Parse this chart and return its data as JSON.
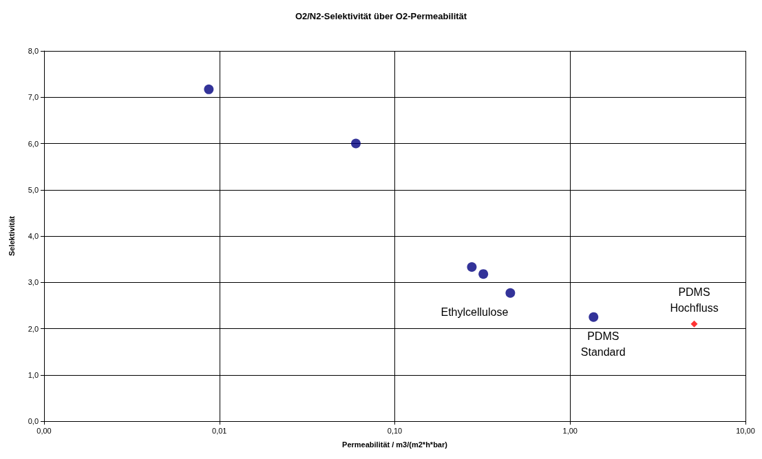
{
  "chart_data": {
    "type": "scatter",
    "title": "O2/N2-Selektivität über O2-Permeabilität",
    "xlabel": "Permeabilität / m3/(m2*h*bar)",
    "ylabel": "Selektivität",
    "log": "x",
    "grid": true,
    "xlim": [
      0.001,
      10
    ],
    "xticks": [
      {
        "value": 0.001,
        "label": "0,00"
      },
      {
        "value": 0.01,
        "label": "0,01"
      },
      {
        "value": 0.1,
        "label": "0,10"
      },
      {
        "value": 1,
        "label": "1,00"
      },
      {
        "value": 10,
        "label": "10,00"
      }
    ],
    "ylim": [
      0,
      8
    ],
    "yticks": [
      {
        "value": 0,
        "label": "0,0"
      },
      {
        "value": 1,
        "label": "1,0"
      },
      {
        "value": 2,
        "label": "2,0"
      },
      {
        "value": 3,
        "label": "3,0"
      },
      {
        "value": 4,
        "label": "4,0"
      },
      {
        "value": 5,
        "label": "5,0"
      },
      {
        "value": 6,
        "label": "6,0"
      },
      {
        "value": 7,
        "label": "7,0"
      },
      {
        "value": 8,
        "label": "8,0"
      }
    ],
    "series": [
      {
        "color": "#000080",
        "marker": "circle",
        "x": [
          0.0087,
          0.06,
          0.275,
          0.32,
          0.456,
          1.36
        ],
        "values": [
          7.17,
          6.0,
          3.33,
          3.18,
          2.77,
          2.25
        ]
      },
      {
        "color": "#ff0000",
        "marker": "diamond",
        "x": [
          5.1
        ],
        "values": [
          2.1
        ]
      }
    ],
    "annotations": [
      {
        "text": "Ethylcellulose",
        "x": 0.456,
        "y": 2.77
      },
      {
        "text": "PDMS\nStandard",
        "x": 1.36,
        "y": 2.25
      },
      {
        "text": "PDMS\nHochfluss",
        "x": 5.1,
        "y": 2.1
      }
    ]
  }
}
